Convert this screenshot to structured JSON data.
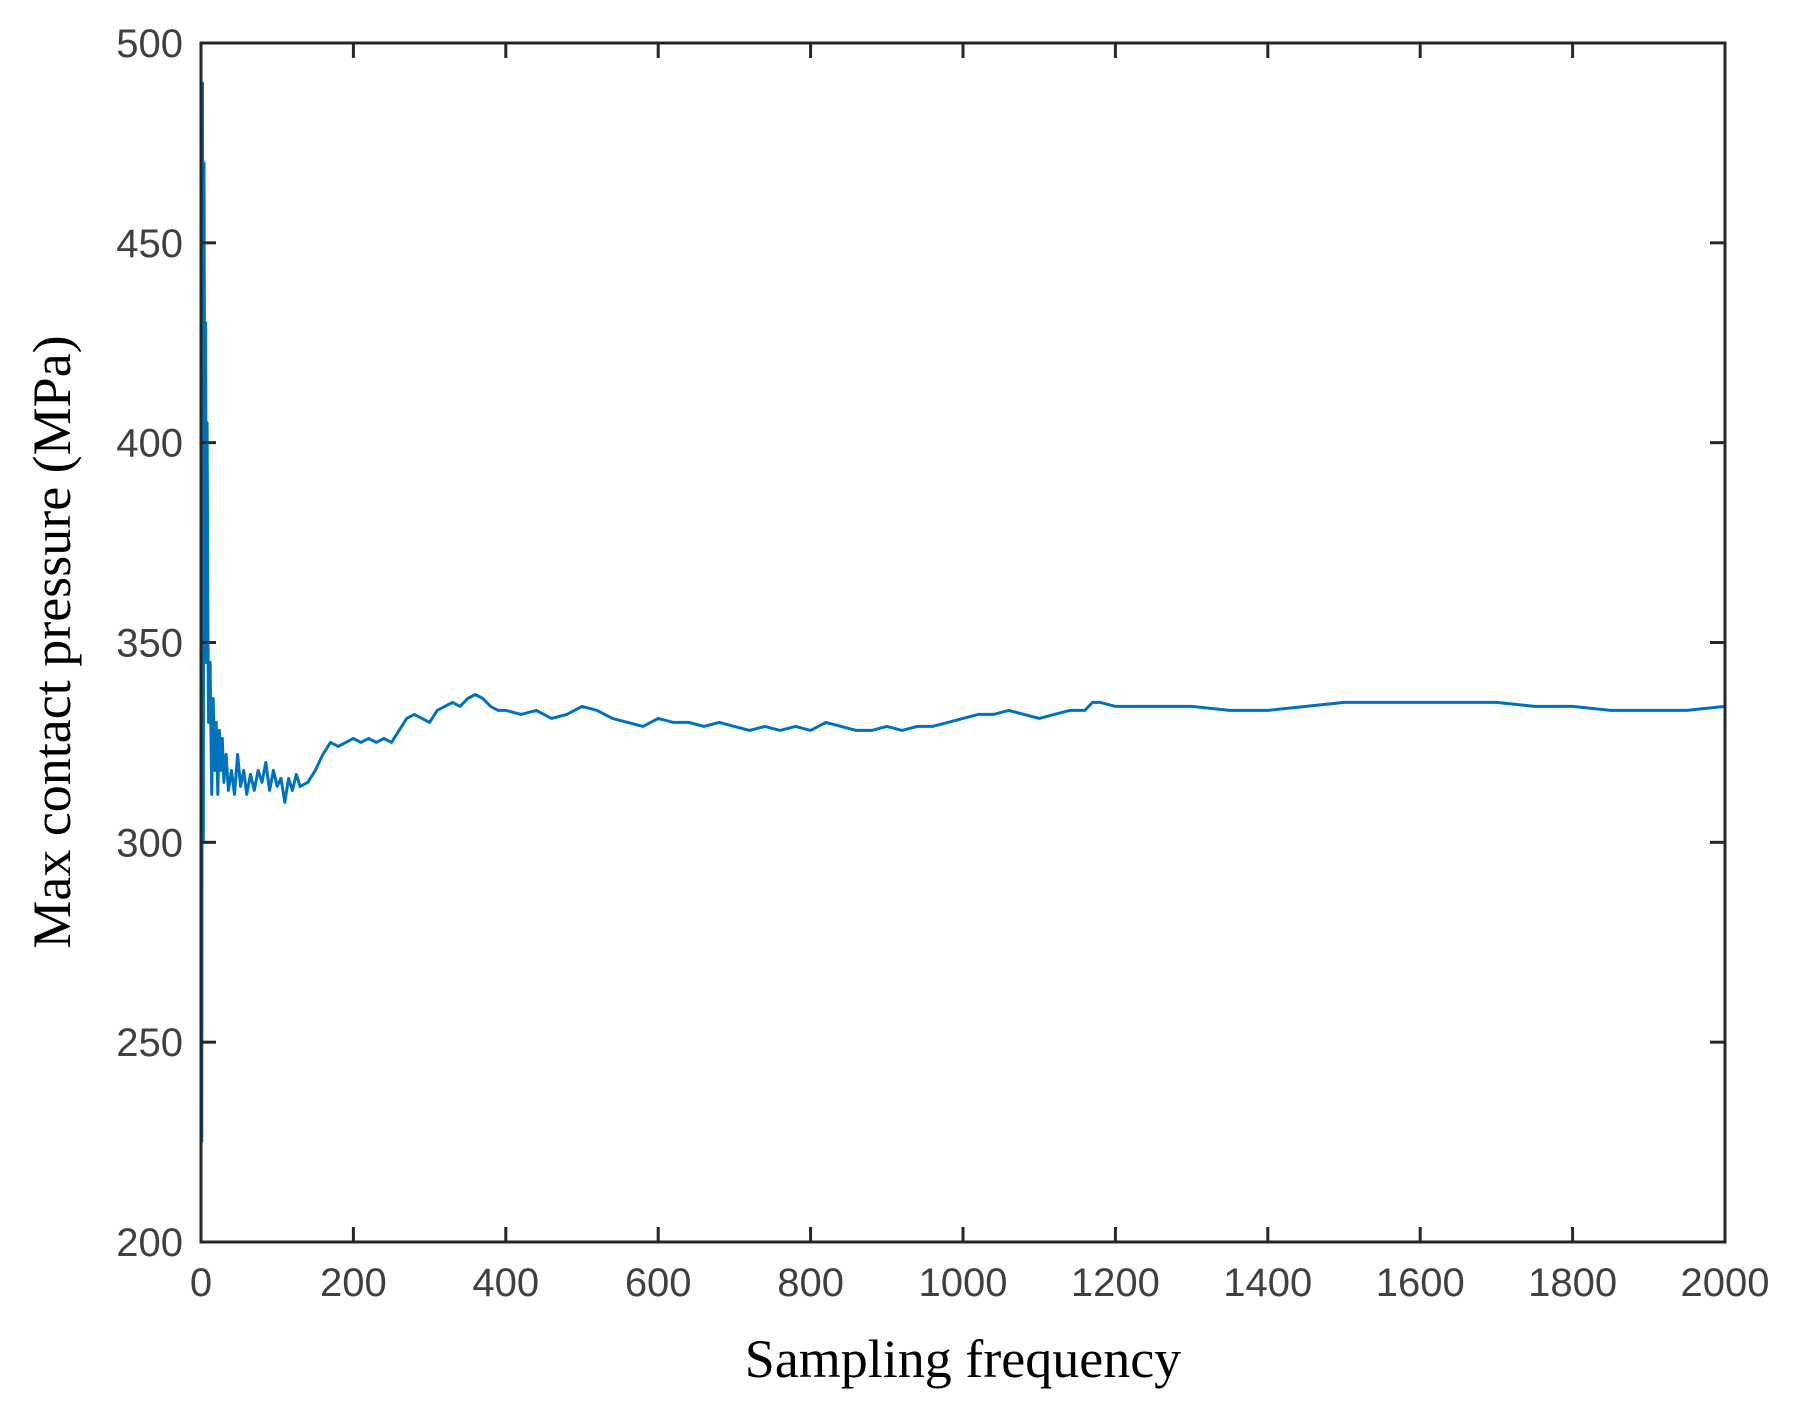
{
  "chart_data": {
    "type": "line",
    "title": "",
    "xlabel": "Sampling frequency",
    "ylabel": "Max contact pressure (MPa)",
    "xlim": [
      0,
      2000
    ],
    "ylim": [
      200,
      500
    ],
    "xticks": [
      0,
      200,
      400,
      600,
      800,
      1000,
      1200,
      1400,
      1600,
      1800,
      2000
    ],
    "yticks": [
      200,
      250,
      300,
      350,
      400,
      450,
      500
    ],
    "xtick_labels": [
      "0",
      "200",
      "400",
      "600",
      "800",
      "1000",
      "1200",
      "1400",
      "1600",
      "1800",
      "2000"
    ],
    "ytick_labels": [
      "200",
      "250",
      "300",
      "350",
      "400",
      "450",
      "500"
    ],
    "grid": false,
    "legend": null,
    "line_color": "#0072BD",
    "series": [
      {
        "name": "Max contact pressure",
        "x": [
          1,
          2,
          3,
          4,
          5,
          6,
          7,
          8,
          9,
          10,
          12,
          14,
          16,
          18,
          20,
          22,
          24,
          26,
          28,
          30,
          33,
          36,
          40,
          44,
          48,
          52,
          56,
          60,
          65,
          70,
          75,
          80,
          85,
          90,
          95,
          100,
          105,
          110,
          115,
          120,
          125,
          130,
          140,
          150,
          160,
          170,
          180,
          190,
          200,
          210,
          220,
          230,
          240,
          250,
          260,
          270,
          280,
          290,
          300,
          310,
          320,
          330,
          340,
          350,
          360,
          370,
          380,
          390,
          400,
          420,
          440,
          460,
          480,
          500,
          520,
          540,
          560,
          580,
          600,
          620,
          640,
          660,
          680,
          700,
          720,
          740,
          760,
          780,
          800,
          820,
          840,
          860,
          880,
          900,
          920,
          940,
          960,
          980,
          1000,
          1020,
          1040,
          1060,
          1080,
          1100,
          1120,
          1140,
          1160,
          1170,
          1180,
          1200,
          1250,
          1300,
          1350,
          1400,
          1450,
          1500,
          1550,
          1600,
          1650,
          1700,
          1750,
          1800,
          1850,
          1900,
          1950,
          2000
        ],
        "y": [
          225,
          490,
          300,
          470,
          380,
          430,
          345,
          405,
          355,
          330,
          345,
          312,
          336,
          318,
          330,
          312,
          328,
          318,
          326,
          315,
          322,
          313,
          318,
          312,
          322,
          314,
          318,
          312,
          317,
          313,
          318,
          315,
          320,
          313,
          318,
          314,
          316,
          310,
          316,
          313,
          317,
          314,
          315,
          318,
          322,
          325,
          324,
          325,
          326,
          325,
          326,
          325,
          326,
          325,
          328,
          331,
          332,
          331,
          330,
          333,
          334,
          335,
          334,
          336,
          337,
          336,
          334,
          333,
          333,
          332,
          333,
          331,
          332,
          334,
          333,
          331,
          330,
          329,
          331,
          330,
          330,
          329,
          330,
          329,
          328,
          329,
          328,
          329,
          328,
          330,
          329,
          328,
          328,
          329,
          328,
          329,
          329,
          330,
          331,
          332,
          332,
          333,
          332,
          331,
          332,
          333,
          333,
          335,
          335,
          334,
          334,
          334,
          333,
          333,
          334,
          335,
          335,
          335,
          335,
          335,
          334,
          334,
          333,
          333,
          333,
          334
        ]
      }
    ]
  }
}
